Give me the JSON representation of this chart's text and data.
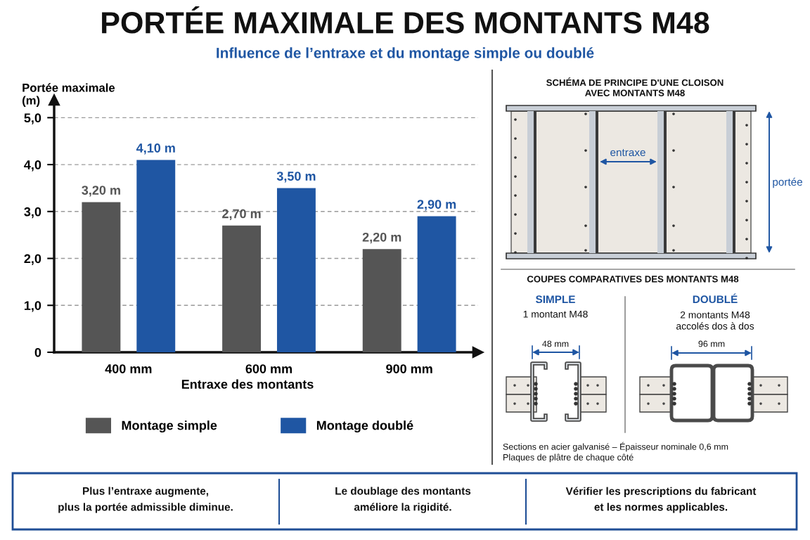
{
  "chart_data": [
    {
      "type": "bar",
      "title": "PORTÉE MAXIMALE DES MONTANTS M48",
      "subtitle": "Influence de l’entraxe et du montage simple ou doublé",
      "ylabel": "Portée maximale\n(m)",
      "xlabel": "Entraxe des montants",
      "categories": [
        "400 mm",
        "600 mm",
        "900 mm"
      ],
      "series": [
        {
          "name": "Montage simple",
          "color": "#555555",
          "values": [
            3.2,
            2.7,
            2.2
          ],
          "value_labels": [
            "3,20 m",
            "2,70 m",
            "2,20 m"
          ]
        },
        {
          "name": "Montage doublé",
          "color": "#1f56a3",
          "values": [
            4.1,
            3.5,
            2.9
          ],
          "value_labels": [
            "4,10 m",
            "3,50 m",
            "2,90 m"
          ]
        }
      ],
      "ylim": [
        0,
        5.38
      ],
      "yticks": [
        0,
        {
          "value": 1,
          "label": "1,0"
        },
        {
          "value": 2,
          "label": "2,0"
        },
        {
          "value": 3,
          "label": "3,0"
        },
        {
          "value": 4,
          "label": "4,0"
        },
        {
          "value": 5,
          "label": "5,0"
        }
      ],
      "grid": "y",
      "legend": "bottom"
    },
    {
      "type": "other",
      "title": "SCHÉMA DE PRINCIPE D'UNE CLOISON\nAVEC MONTANTS M48",
      "annotations": [
        "entraxe",
        "portée"
      ]
    },
    {
      "type": "other",
      "title": "COUPES COMPARATIVES DES MONTANTS M48",
      "annotations": [
        "SIMPLE",
        "1 montant M48",
        "48 mm",
        "DOUBLÉ",
        "2 montants M48\naccolés dos à dos",
        "96 mm",
        "Sections en acier galvanisé – Épaisseur nominale 0,6 mm\nPlaques de plâtre de chaque côté"
      ]
    },
    {
      "type": "other",
      "annotations": [
        "Plus l’entraxe augmente,\nplus la portée admissible diminue.",
        "Le doublage des montants\naméliore la rigidité.",
        "Vérifier les prescriptions du fabricant\net les normes applicables."
      ]
    }
  ]
}
